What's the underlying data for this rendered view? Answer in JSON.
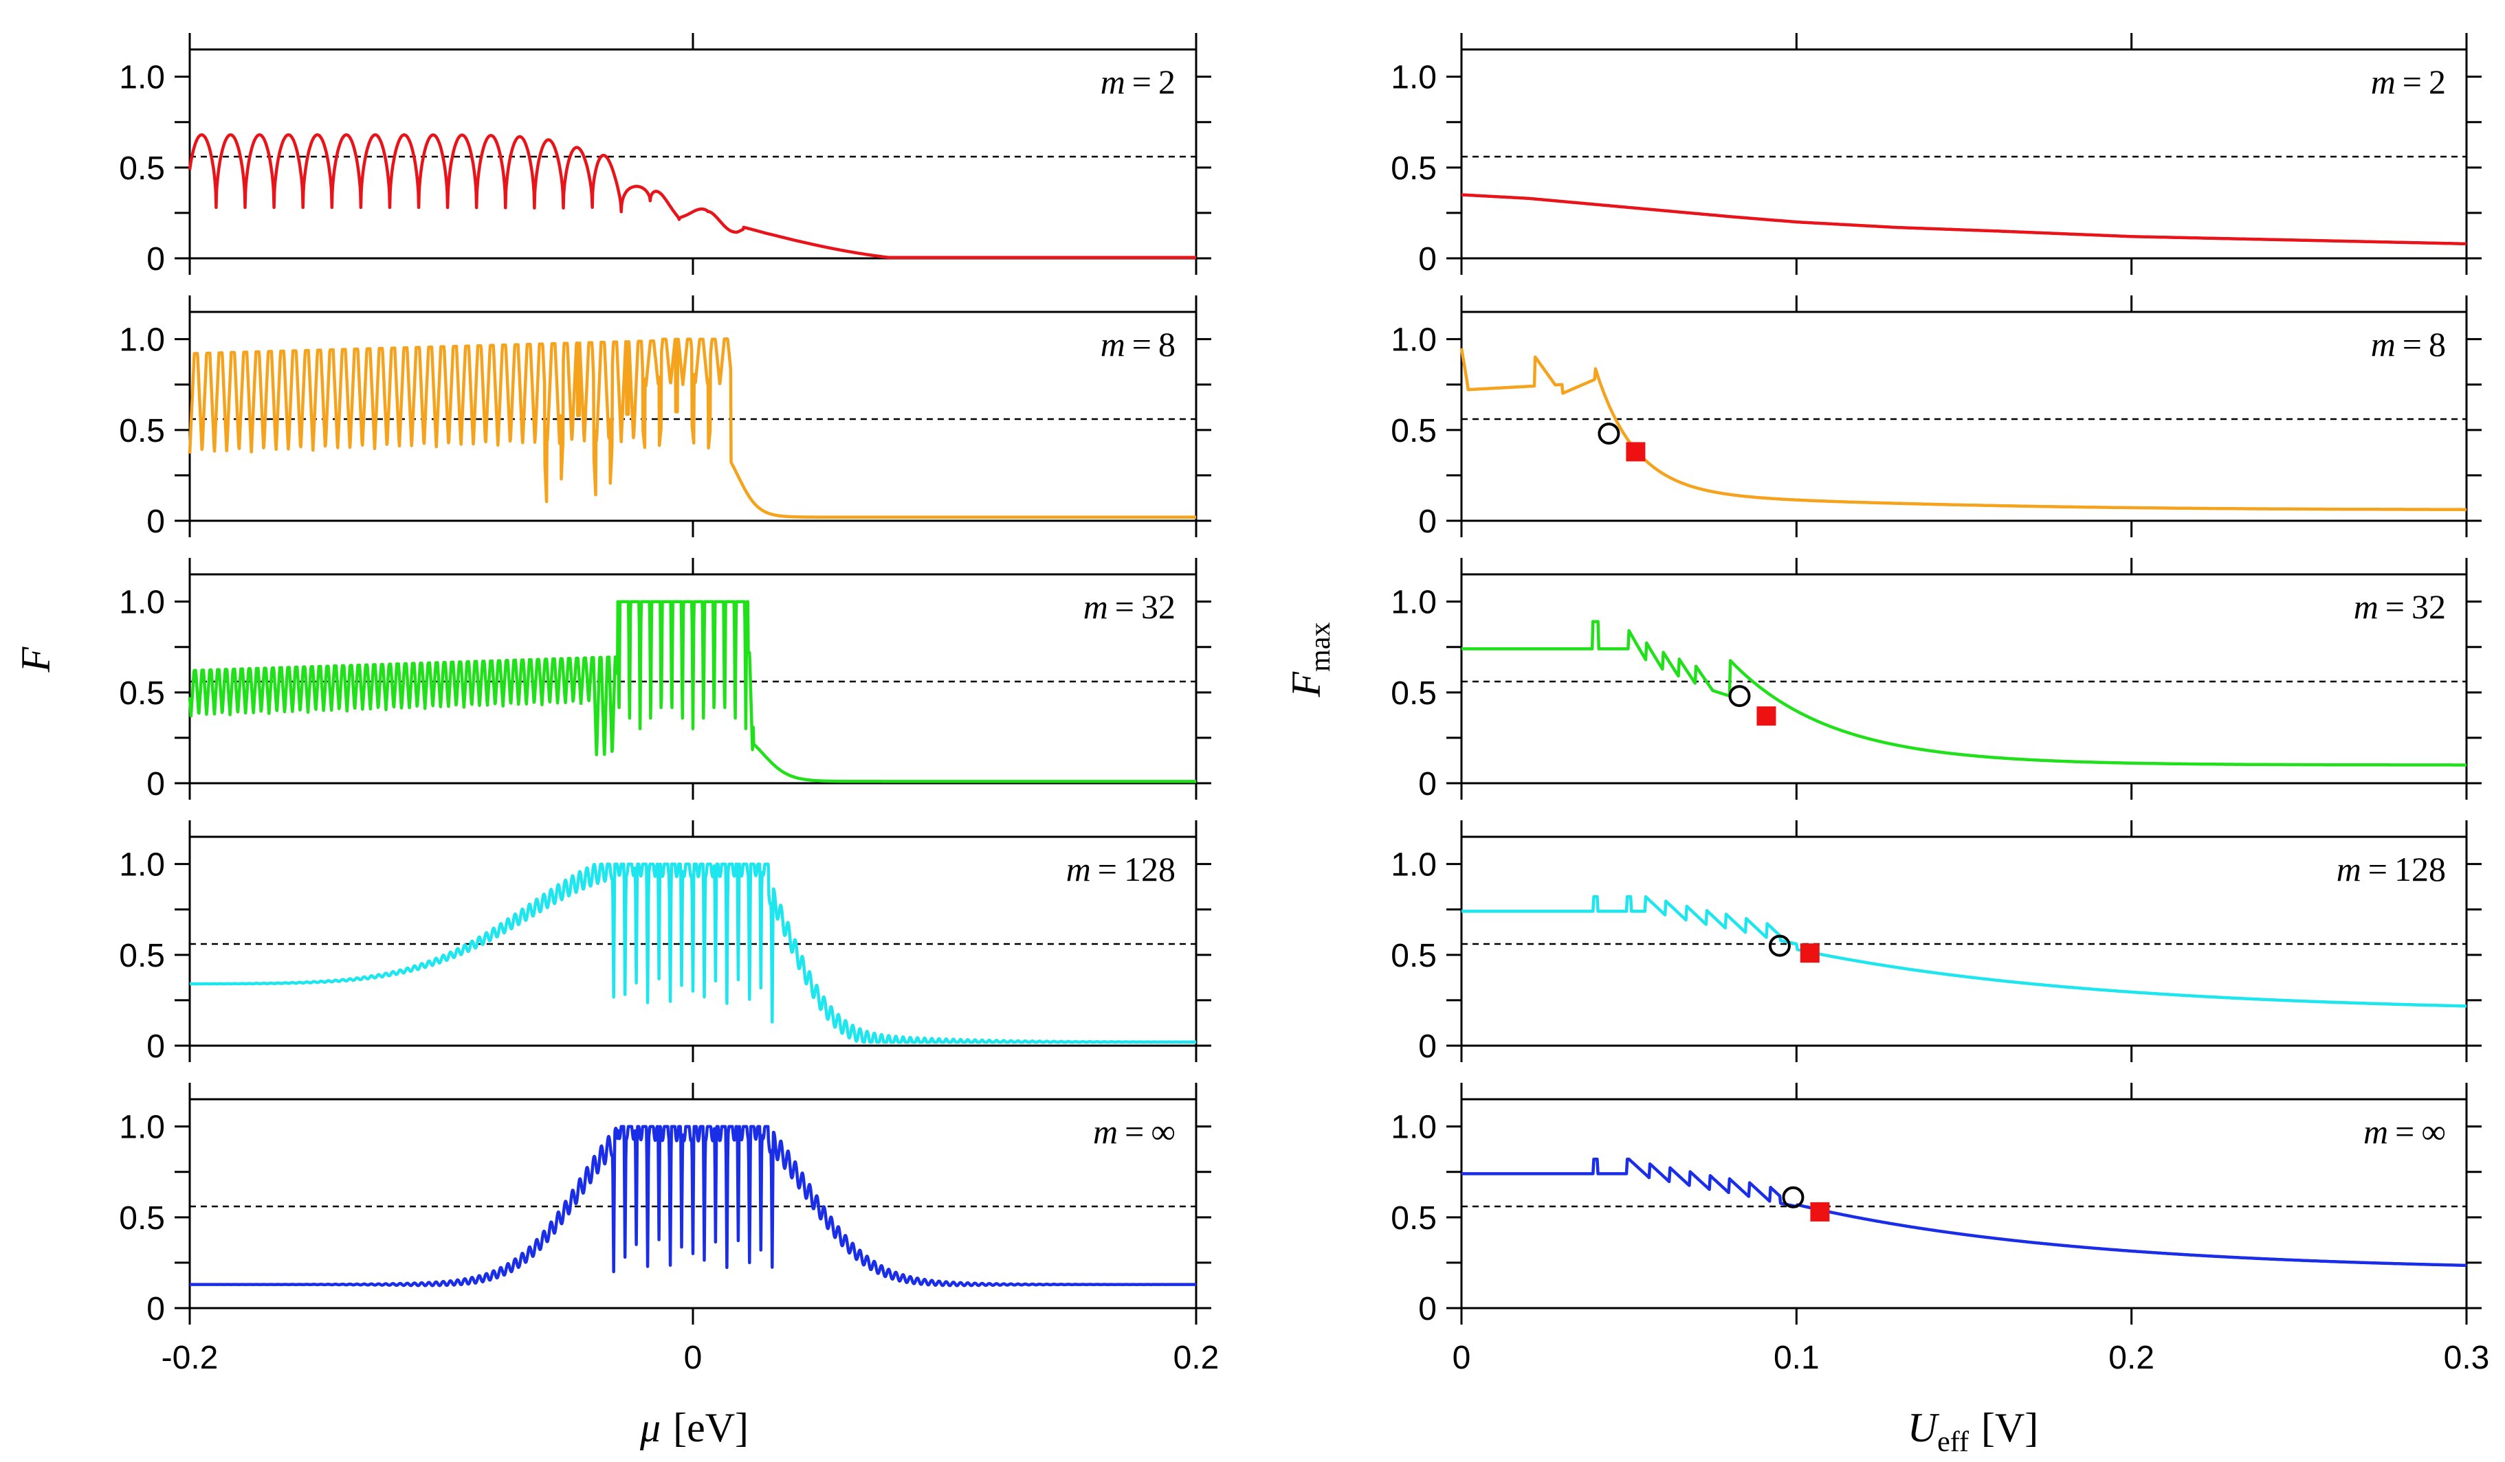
{
  "chart_data": [
    {
      "type": "line",
      "column": "left",
      "xlabel_symbol": "μ",
      "xlabel_unit": "[eV]",
      "ylabel": "F",
      "xlim": [
        -0.2,
        0.2
      ],
      "ylim": [
        0,
        1.15
      ],
      "xticks": [
        "-0.2",
        "0",
        "0.2"
      ],
      "xtick_values": [
        -0.2,
        0,
        0.2
      ],
      "yticks": [
        "0",
        "0.5",
        "1.0"
      ],
      "ytick_values": [
        0,
        0.5,
        1.0
      ],
      "threshold": 0.56,
      "panels": [
        {
          "name": "m-2",
          "m_label": "m = 2",
          "color": "#e8141a",
          "model": "m2"
        },
        {
          "name": "m-8",
          "m_label": "m = 8",
          "color": "#f5a21c",
          "model": "m8"
        },
        {
          "name": "m-32",
          "m_label": "m = 32",
          "color": "#20e01a",
          "model": "m32"
        },
        {
          "name": "m-128",
          "m_label": "m = 128",
          "color": "#1ee6ee",
          "model": "m128"
        },
        {
          "name": "m-inf",
          "m_label": "m = ∞",
          "color": "#1a2ee8",
          "model": "minf"
        }
      ]
    },
    {
      "type": "line",
      "column": "right",
      "xlabel_symbol": "U",
      "xlabel_subscript": "eff",
      "xlabel_unit": "[V]",
      "ylabel": "F",
      "ylabel_subscript": "max",
      "xlim": [
        0,
        0.3
      ],
      "ylim": [
        0,
        1.15
      ],
      "xticks": [
        "0",
        "0.1",
        "0.2",
        "0.3"
      ],
      "xtick_values": [
        0,
        0.1,
        0.2,
        0.3
      ],
      "yticks": [
        "0",
        "0.5",
        "1.0"
      ],
      "ytick_values": [
        0,
        0.5,
        1.0
      ],
      "threshold": 0.56,
      "panels": [
        {
          "name": "m-2",
          "m_label": "m = 2",
          "color": "#e8141a",
          "model": "r2",
          "series": {
            "x": [
              0,
              0.02,
              0.05,
              0.08,
              0.1,
              0.13,
              0.16,
              0.2,
              0.25,
              0.3
            ],
            "y": [
              0.35,
              0.33,
              0.28,
              0.23,
              0.2,
              0.17,
              0.15,
              0.12,
              0.1,
              0.08
            ]
          }
        },
        {
          "name": "m-8",
          "m_label": "m = 8",
          "color": "#f5a21c",
          "model": "r8",
          "circle": [
            0.044,
            0.48
          ],
          "square": [
            0.052,
            0.38
          ]
        },
        {
          "name": "m-32",
          "m_label": "m = 32",
          "color": "#20e01a",
          "model": "r32",
          "circle": [
            0.083,
            0.48
          ],
          "square": [
            0.091,
            0.37
          ]
        },
        {
          "name": "m-128",
          "m_label": "m = 128",
          "color": "#1ee6ee",
          "model": "r128",
          "circle": [
            0.095,
            0.55
          ],
          "square": [
            0.104,
            0.51
          ]
        },
        {
          "name": "m-inf",
          "m_label": "m = ∞",
          "color": "#1a2ee8",
          "model": "rinf",
          "circle": [
            0.099,
            0.61
          ],
          "square": [
            0.107,
            0.53
          ]
        }
      ]
    }
  ]
}
